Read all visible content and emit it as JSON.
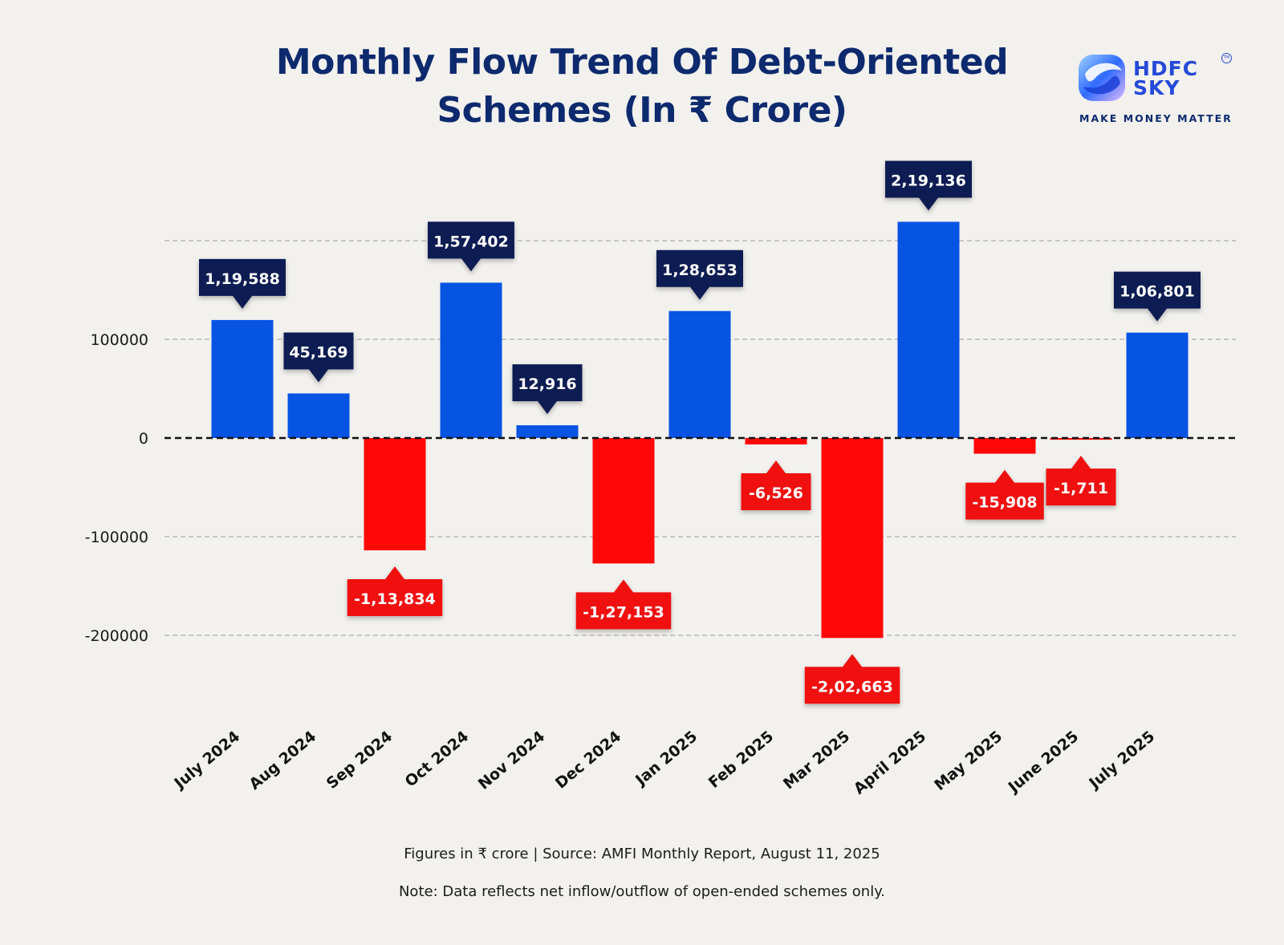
{
  "title": {
    "line1": "Monthly Flow Trend Of Debt-Oriented",
    "line2": "Schemes (In ₹ Crore)"
  },
  "logo": {
    "brand_line1": "HDFC",
    "brand_line2": "SKY",
    "trademark": "TM",
    "tagline": "MAKE MONEY MATTER"
  },
  "footer": {
    "source": "Figures in ₹ crore  |  Source: AMFI Monthly Report, August 11, 2025",
    "note": "Note: Data reflects net inflow/outflow of open-ended schemes only."
  },
  "chart_data": {
    "type": "bar",
    "title": "Monthly Flow Trend Of Debt-Oriented Schemes (In ₹ Crore)",
    "categories": [
      "July 2024",
      "Aug 2024",
      "Sep 2024",
      "Oct 2024",
      "Nov 2024",
      "Dec 2024",
      "Jan 2025",
      "Feb 2025",
      "Mar 2025",
      "April 2025",
      "May 2025",
      "June 2025",
      "July 2025"
    ],
    "values": [
      119588,
      45169,
      -113834,
      157402,
      12916,
      -127153,
      128653,
      -6526,
      -202663,
      219136,
      -15908,
      -1711,
      106801
    ],
    "data_labels": [
      "1,19,588",
      "45,169",
      "-1,13,834",
      "1,57,402",
      "12,916",
      "-1,27,153",
      "1,28,653",
      "-6,526",
      "-2,02,663",
      "2,19,136",
      "-15,908",
      "-1,711",
      "1,06,801"
    ],
    "y_ticks": [
      -200000,
      -100000,
      0,
      100000
    ],
    "y_tick_labels": [
      "-200000",
      "-100000",
      "0",
      "100000"
    ],
    "ylim": [
      -200000,
      200000
    ],
    "grid": true,
    "colors": {
      "positive": "#0754e3",
      "negative": "#ff0707",
      "positive_label": "#0d1c52",
      "negative_label": "#f01010"
    }
  }
}
